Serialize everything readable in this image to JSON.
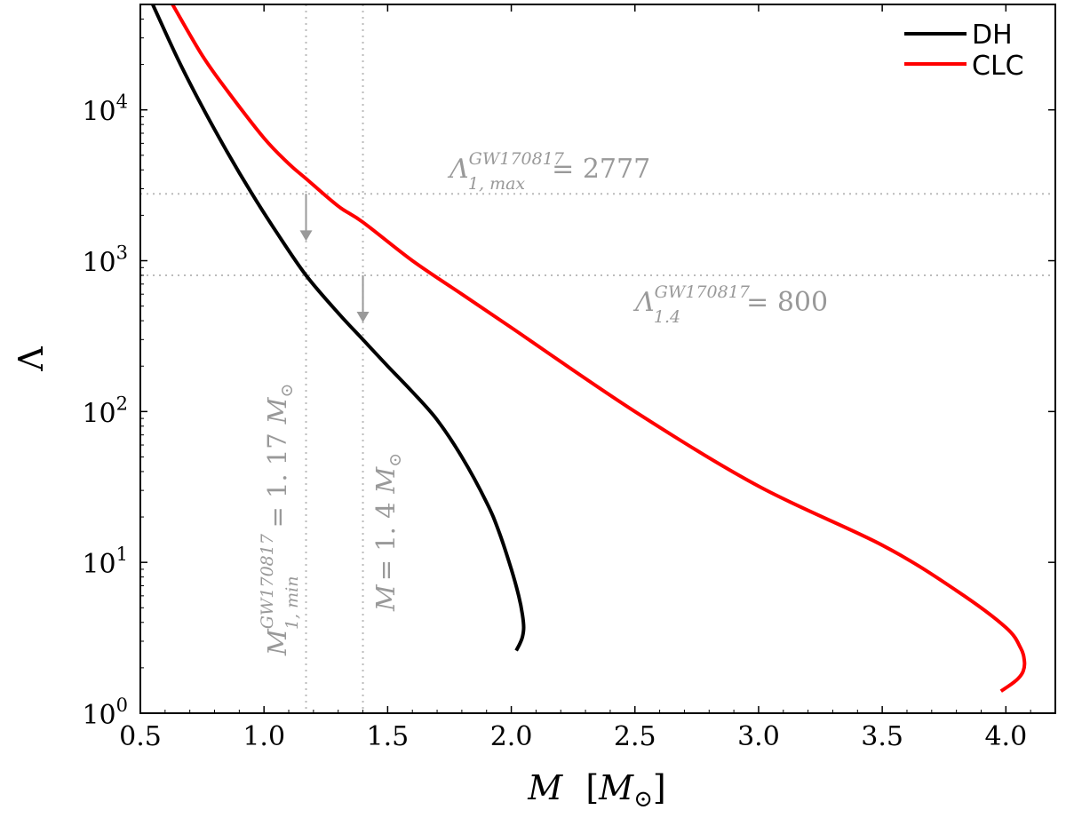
{
  "chart_data": {
    "type": "line",
    "xlabel": "M",
    "xlabel_unit": "M",
    "xlabel_unit_sub": "⊙",
    "ylabel": "Λ",
    "xlim": [
      0.5,
      4.2
    ],
    "ylim": [
      1,
      50000
    ],
    "y_scale": "log",
    "x_ticks": [
      "0.5",
      "1.0",
      "1.5",
      "2.0",
      "2.5",
      "3.0",
      "3.5",
      "4.0"
    ],
    "y_ticks": [
      {
        "base": "10",
        "exp": "0",
        "value": 1
      },
      {
        "base": "10",
        "exp": "1",
        "value": 10
      },
      {
        "base": "10",
        "exp": "2",
        "value": 100
      },
      {
        "base": "10",
        "exp": "3",
        "value": 1000
      },
      {
        "base": "10",
        "exp": "4",
        "value": 10000
      }
    ],
    "legend_position": "top-right",
    "grid": false,
    "series": [
      {
        "name": "DH",
        "color": "#000000",
        "x": [
          0.55,
          0.65,
          0.75,
          0.85,
          0.95,
          1.05,
          1.17,
          1.3,
          1.4,
          1.5,
          1.6,
          1.7,
          1.8,
          1.9,
          1.95,
          2.0,
          2.03,
          2.045,
          2.05,
          2.045,
          2.035,
          2.02
        ],
        "y": [
          50000,
          22000,
          10500,
          5300,
          2800,
          1550,
          800,
          450,
          300,
          200,
          135,
          88,
          50,
          25,
          16,
          9,
          6,
          4.5,
          3.7,
          3.2,
          2.9,
          2.6
        ]
      },
      {
        "name": "CLC",
        "color": "#ff0000",
        "x": [
          0.63,
          0.75,
          0.85,
          1.0,
          1.1,
          1.17,
          1.3,
          1.4,
          1.6,
          1.8,
          2.0,
          2.5,
          3.0,
          3.5,
          3.8,
          4.0,
          4.06,
          4.075,
          4.07,
          4.05,
          4.02,
          3.98
        ],
        "y": [
          50000,
          23000,
          13500,
          6500,
          4400,
          3500,
          2300,
          1800,
          1000,
          600,
          360,
          100,
          32,
          13,
          6.5,
          3.7,
          2.7,
          2.2,
          1.9,
          1.7,
          1.55,
          1.4
        ]
      }
    ],
    "reference_lines": [
      {
        "orientation": "horizontal",
        "value": 2777
      },
      {
        "orientation": "horizontal",
        "value": 800
      },
      {
        "orientation": "vertical",
        "value": 1.17
      },
      {
        "orientation": "vertical",
        "value": 1.4
      }
    ],
    "arrows": [
      {
        "x": 1.17,
        "from": 2777,
        "to": 1350
      },
      {
        "x": 1.4,
        "from": 800,
        "to": 390
      }
    ],
    "annotations": {
      "lambda_max": {
        "main": "Λ",
        "sup": "GW170817",
        "sub": "1, max",
        "tail": "= 2777"
      },
      "lambda_14": {
        "main": "Λ",
        "sup": "GW170817",
        "sub": "1.4",
        "tail": "= 800"
      },
      "m_min": {
        "main": "M",
        "sup": "GW170817",
        "sub": "1, min",
        "tail": "= 1. 17",
        "unit": "M",
        "unit_sub": "⊙"
      },
      "m_14": {
        "main": "M",
        "tail": "= 1. 4",
        "unit": "M",
        "unit_sub": "⊙"
      }
    },
    "colors": {
      "reference": "#bbbbbb",
      "arrow": "#999999",
      "annotation": "#999999"
    }
  }
}
